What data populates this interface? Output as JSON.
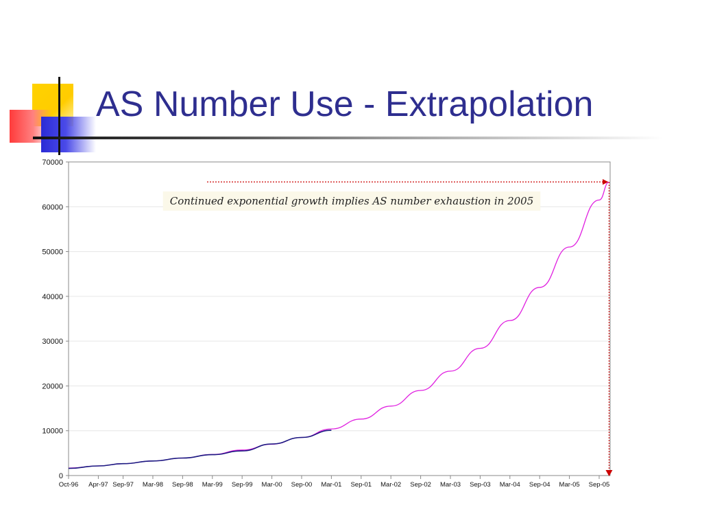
{
  "slide": {
    "title": "AS Number Use - Extrapolation"
  },
  "colors": {
    "title": "#2e2e8f",
    "observed_line": "#1a1a80",
    "projection_line": "#e020e0",
    "marker_arrow": "#cc0000"
  },
  "chart_data": {
    "type": "line",
    "title": "",
    "xlabel": "",
    "ylabel": "",
    "ylim": [
      0,
      70000
    ],
    "y_ticks": [
      "0",
      "10000",
      "20000",
      "30000",
      "40000",
      "50000",
      "60000",
      "70000"
    ],
    "x_ticks": [
      "Oct-96",
      "Apr-97",
      "Sep-97",
      "Mar-98",
      "Sep-98",
      "Mar-99",
      "Sep-99",
      "Mar-00",
      "Sep-00",
      "Mar-01",
      "Sep-01",
      "Mar-02",
      "Sep-02",
      "Mar-03",
      "Sep-03",
      "Mar-04",
      "Sep-04",
      "Mar-05",
      "Sep-05"
    ],
    "grid": true,
    "annotation": "Continued exponential growth implies AS number exhaustion in 2005",
    "series": [
      {
        "role": "observed",
        "color": "#1a1a80",
        "x": [
          "Oct-96",
          "Apr-97",
          "Sep-97",
          "Mar-98",
          "Sep-98",
          "Mar-99",
          "Sep-99",
          "Mar-00",
          "Sep-00",
          "Mar-01"
        ],
        "y": [
          1600,
          2150,
          2650,
          3250,
          3900,
          4650,
          5500,
          7050,
          8500,
          10100
        ]
      },
      {
        "role": "projection",
        "color": "#e020e0",
        "x": [
          "Oct-96",
          "Apr-97",
          "Sep-97",
          "Mar-98",
          "Sep-98",
          "Mar-99",
          "Sep-99",
          "Mar-00",
          "Sep-00",
          "Mar-01",
          "Sep-01",
          "Mar-02",
          "Sep-02",
          "Mar-03",
          "Sep-03",
          "Mar-04",
          "Sep-04",
          "Mar-05",
          "Sep-05",
          "Nov-05"
        ],
        "y": [
          1650,
          2150,
          2650,
          3250,
          3900,
          4700,
          5700,
          7000,
          8500,
          10400,
          12600,
          15500,
          19000,
          23300,
          28400,
          34600,
          42000,
          51000,
          61500,
          65500
        ]
      }
    ],
    "exhaustion_marker": {
      "level": 65535,
      "x": "Nov-05"
    }
  }
}
